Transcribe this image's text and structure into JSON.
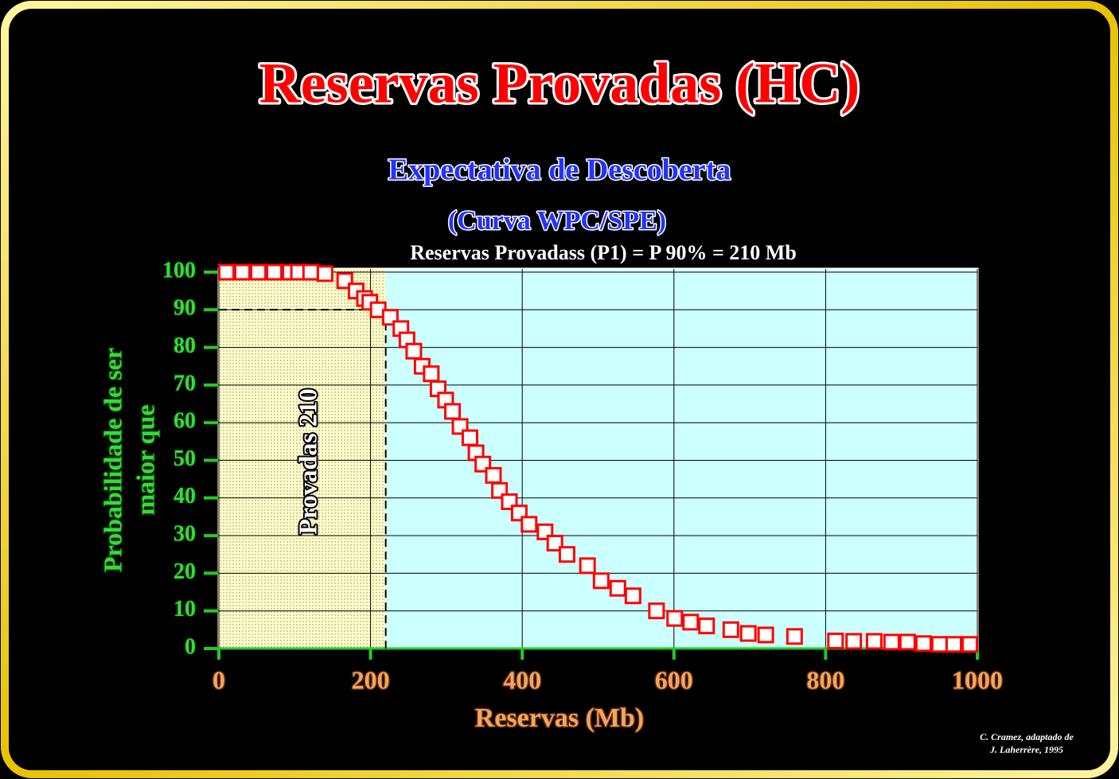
{
  "chart_data": {
    "type": "scatter",
    "title": "Reservas Provadas (HC)",
    "subtitle": "Expectativa de Descoberta",
    "subtitle2": "(Curva WPC/SPE)",
    "annotation": "Reservas Provadass (P1) = P 90% = 210 Mb",
    "region_label": "Provadas 210",
    "x_label": "Reservas (Mb)",
    "y_label": [
      "Probabilidade de ser",
      "maior que"
    ],
    "credit": [
      "C. Cramez, adaptado de",
      "J. Laherrère, 1995"
    ],
    "x": [
      10,
      31,
      52,
      73,
      94,
      105,
      121,
      140,
      166,
      181,
      192,
      199,
      210,
      226,
      240,
      248,
      257,
      268,
      280,
      289,
      299,
      308,
      318,
      331,
      339,
      348,
      362,
      370,
      383,
      396,
      409,
      430,
      443,
      459,
      486,
      504,
      526,
      546,
      577,
      601,
      622,
      643,
      675,
      698,
      721,
      759,
      813,
      837,
      864,
      887,
      908,
      929,
      950,
      969,
      990
    ],
    "series": [
      {
        "color": "#ff0000",
        "values": [
          100,
          100,
          100,
          100,
          100,
          100,
          100,
          99.6,
          97.7,
          95,
          93,
          92,
          90,
          88,
          85,
          82,
          79,
          75,
          73,
          69,
          66,
          63,
          59,
          56,
          52,
          49,
          46,
          42,
          39,
          36,
          33,
          31,
          28,
          25,
          22,
          18,
          16,
          14,
          10,
          8,
          7,
          6,
          5,
          4,
          3.6,
          3.2,
          2,
          1.9,
          1.9,
          1.7,
          1.7,
          1.3,
          1.1,
          1.1,
          1.1
        ]
      }
    ],
    "xlim": [
      0,
      1000
    ],
    "ylim": [
      0,
      100
    ],
    "xticks": [
      0,
      200,
      400,
      600,
      800,
      1000
    ],
    "yticks": [
      0,
      10,
      20,
      30,
      40,
      50,
      60,
      70,
      80,
      90,
      100
    ],
    "grid": true,
    "reference": {
      "x": 220,
      "y": 90
    },
    "region_color": "#ffffcc",
    "plot_color": "#ccffff"
  }
}
